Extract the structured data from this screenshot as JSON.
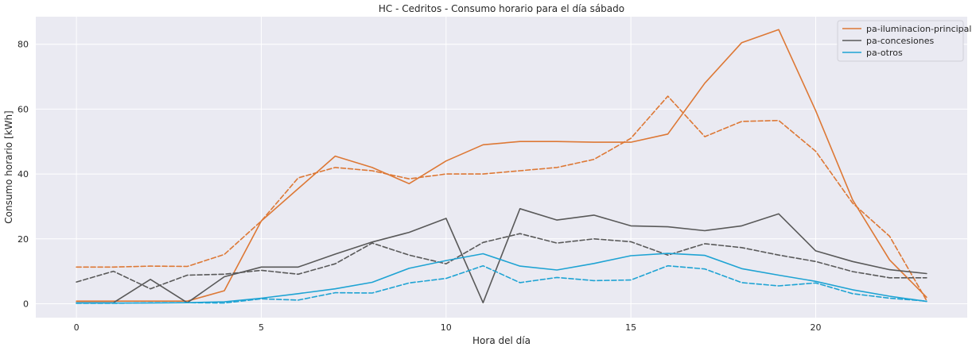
{
  "chart_data": {
    "type": "line",
    "title": "HC - Cedritos - Consumo horario para el día sábado",
    "xlabel": "Hora del día",
    "ylabel": "Consumo horario [kWh]",
    "xlim": [
      -1.1,
      24.1
    ],
    "ylim": [
      -4.3,
      88.5
    ],
    "xticks": [
      0,
      5,
      10,
      15,
      20
    ],
    "yticks": [
      0,
      20,
      40,
      60,
      80
    ],
    "grid": true,
    "legend_position": "top-right",
    "x": [
      0,
      1,
      2,
      3,
      4,
      5,
      6,
      7,
      8,
      9,
      10,
      11,
      12,
      13,
      14,
      15,
      16,
      17,
      18,
      19,
      20,
      21,
      22,
      23
    ],
    "series": [
      {
        "name": "pa-iluminacion-principal",
        "color": "#dd7835",
        "style": "solid",
        "values": [
          0.8,
          0.8,
          0.8,
          0.8,
          4.0,
          25.5,
          35.5,
          45.5,
          42.0,
          37.0,
          44.0,
          49.0,
          50.0,
          50.0,
          49.8,
          49.8,
          52.3,
          68.0,
          80.5,
          84.5,
          59.5,
          32.0,
          13.5,
          2.0
        ]
      },
      {
        "name": "pa-iluminacion-principal-dashed",
        "color": "#dd7835",
        "style": "dashed",
        "values": [
          11.3,
          11.3,
          11.6,
          11.5,
          15.2,
          25.5,
          38.8,
          42.0,
          41.0,
          38.5,
          40.0,
          40.0,
          41.0,
          42.0,
          44.5,
          51.0,
          64.0,
          51.5,
          56.2,
          56.5,
          47.0,
          31.0,
          20.8,
          1.0
        ]
      },
      {
        "name": "pa-concesiones",
        "color": "#595959",
        "style": "solid",
        "values": [
          0.3,
          0.3,
          7.5,
          0.3,
          8.3,
          11.3,
          11.3,
          15.3,
          19.0,
          22.0,
          26.3,
          0.3,
          29.3,
          25.8,
          27.3,
          24.0,
          23.7,
          22.5,
          24.0,
          27.7,
          16.3,
          13.0,
          10.5,
          9.3
        ]
      },
      {
        "name": "pa-concesiones-dashed",
        "color": "#595959",
        "style": "dashed",
        "values": [
          6.7,
          10.0,
          4.6,
          8.8,
          9.1,
          10.3,
          9.1,
          12.3,
          18.7,
          15.0,
          12.3,
          18.9,
          21.6,
          18.7,
          20.0,
          19.1,
          15.0,
          18.5,
          17.3,
          15.0,
          13.0,
          9.9,
          8.0,
          8.0
        ]
      },
      {
        "name": "pa-otros",
        "color": "#1ea3d3",
        "style": "solid",
        "values": [
          0.2,
          0.2,
          0.2,
          0.3,
          0.6,
          1.7,
          3.1,
          4.6,
          6.6,
          10.9,
          13.3,
          15.4,
          11.6,
          10.4,
          12.4,
          14.8,
          15.5,
          14.9,
          10.8,
          8.8,
          6.9,
          4.3,
          2.3,
          0.7
        ]
      },
      {
        "name": "pa-otros-dashed",
        "color": "#1ea3d3",
        "style": "dashed",
        "values": [
          0.1,
          0.1,
          0.3,
          0.3,
          0.2,
          1.5,
          1.1,
          3.4,
          3.3,
          6.4,
          7.8,
          11.7,
          6.5,
          8.1,
          7.1,
          7.3,
          11.7,
          10.7,
          6.5,
          5.5,
          6.4,
          3.1,
          1.7,
          0.8
        ]
      }
    ],
    "legend": [
      {
        "label": "pa-iluminacion-principal",
        "color": "#dd7835"
      },
      {
        "label": "pa-concesiones",
        "color": "#595959"
      },
      {
        "label": "pa-otros",
        "color": "#1ea3d3"
      }
    ]
  }
}
